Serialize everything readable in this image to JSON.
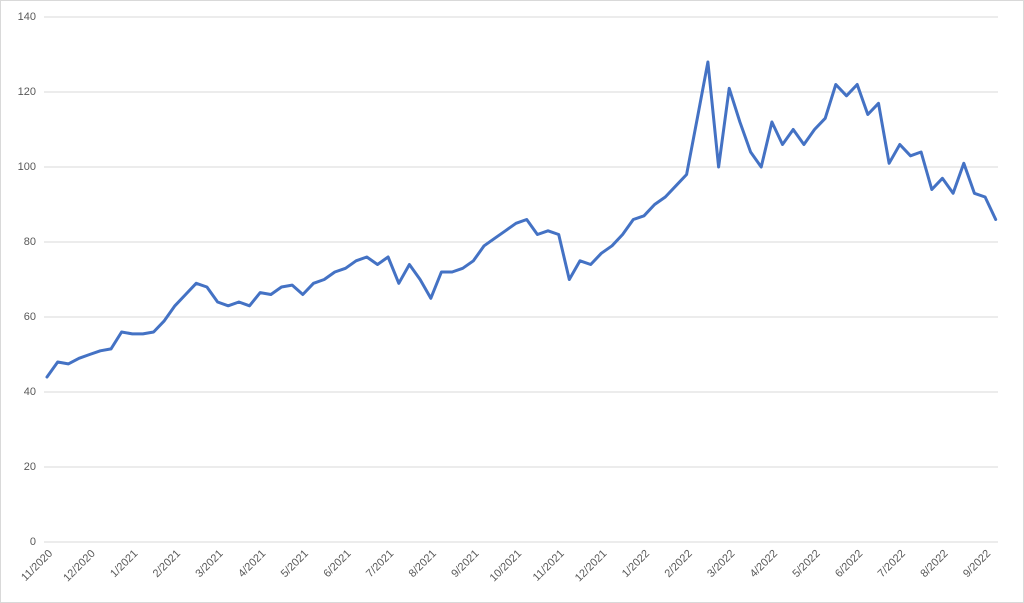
{
  "chart_data": {
    "type": "line",
    "x": [
      "11/2020",
      null,
      null,
      null,
      "12/2020",
      null,
      null,
      null,
      "1/2021",
      null,
      null,
      null,
      "2/2021",
      null,
      null,
      null,
      "3/2021",
      null,
      null,
      null,
      "4/2021",
      null,
      null,
      null,
      "5/2021",
      null,
      null,
      null,
      "6/2021",
      null,
      null,
      null,
      "7/2021",
      null,
      null,
      null,
      "8/2021",
      null,
      null,
      null,
      "9/2021",
      null,
      null,
      null,
      "10/2021",
      null,
      null,
      null,
      "11/2021",
      null,
      null,
      null,
      "12/2021",
      null,
      null,
      null,
      "1/2022",
      null,
      null,
      null,
      "2/2022",
      null,
      null,
      null,
      "3/2022",
      null,
      null,
      null,
      "4/2022",
      null,
      null,
      null,
      "5/2022",
      null,
      null,
      null,
      "6/2022",
      null,
      null,
      null,
      "7/2022",
      null,
      null,
      null,
      "8/2022",
      null,
      null,
      null,
      "9/2022",
      null
    ],
    "series": [
      {
        "color": "#4472c4",
        "values": [
          44,
          48,
          47.5,
          49,
          50,
          51,
          51.5,
          56,
          55.5,
          55.5,
          56,
          59,
          63,
          66,
          69,
          68,
          64,
          63,
          64,
          63,
          66.5,
          66,
          68,
          68.5,
          66,
          69,
          70,
          72,
          73,
          75,
          76,
          74,
          76,
          69,
          74,
          70,
          65,
          72,
          72,
          73,
          75,
          79,
          81,
          83,
          85,
          86,
          82,
          83,
          82,
          70,
          75,
          74,
          77,
          79,
          82,
          86,
          87,
          90,
          92,
          95,
          98,
          113,
          128,
          100,
          121,
          112,
          104,
          100,
          112,
          106,
          110,
          106,
          110,
          113,
          122,
          119,
          122,
          114,
          117,
          101,
          106,
          103,
          104,
          94,
          97,
          93,
          101,
          93,
          92,
          86
        ]
      }
    ],
    "ylim": [
      0,
      140
    ],
    "yticks": [
      0,
      20,
      40,
      60,
      80,
      100,
      120,
      140
    ],
    "grid": true
  }
}
